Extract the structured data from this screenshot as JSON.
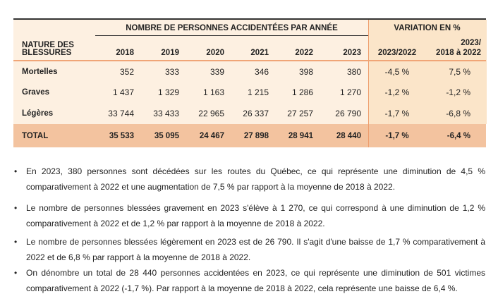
{
  "table": {
    "group_header_counts": "NOMBRE DE PERSONNES ACCIDENTÉES PAR ANNÉE",
    "group_header_variation": "VARIATION EN %",
    "row_header_line1": "NATURE DES",
    "row_header_line2": "BLESSURES",
    "years": [
      "2018",
      "2019",
      "2020",
      "2021",
      "2022",
      "2023"
    ],
    "var_col1": "2023/2022",
    "var_col2_line1": "2023/",
    "var_col2_line2": "2018 à 2022",
    "rows": [
      {
        "label": "Mortelles",
        "values": [
          "352",
          "333",
          "339",
          "346",
          "398",
          "380"
        ],
        "var1": "-4,5 %",
        "var2": "7,5 %"
      },
      {
        "label": "Graves",
        "values": [
          "1 437",
          "1 329",
          "1 163",
          "1 215",
          "1 286",
          "1 270"
        ],
        "var1": "-1,2 %",
        "var2": "-1,2 %"
      },
      {
        "label": "Légères",
        "values": [
          "33 744",
          "33 433",
          "22 965",
          "26 337",
          "27 257",
          "26 790"
        ],
        "var1": "-1,7 %",
        "var2": "-6,8 %"
      }
    ],
    "total": {
      "label": "TOTAL",
      "values": [
        "35 533",
        "35 095",
        "24 467",
        "27 898",
        "28 941",
        "28 440"
      ],
      "var1": "-1,7 %",
      "var2": "-6,4 %"
    }
  },
  "bullets": [
    "En 2023, 380 personnes sont décédées sur les routes du Québec, ce qui représente une diminution de 4,5 % comparativement à 2022 et une augmentation de 7,5 % par rapport à la moyenne de 2018 à 2022.",
    "Le nombre de personnes blessées gravement en 2023 s'élève à 1 270, ce qui correspond à une diminution de 1,2 % comparativement à 2022 et de 1,2 % par rapport à la moyenne de 2018 à 2022.",
    "Le nombre de personnes blessées légèrement en 2023 est de 26 790. Il s'agit d'une baisse de 1,7 % comparativement à 2022 et de 6,8 % par rapport à la moyenne de 2018 à 2022.",
    "On dénombre un total de 28 440 personnes accidentées en 2023, ce qui représente une diminution de 501 victimes comparativement à 2022 (-1,7 %). Par rapport à la moyenne de 2018 à 2022, cela représente une baisse de 6,4 %."
  ],
  "bullet_char": "•"
}
